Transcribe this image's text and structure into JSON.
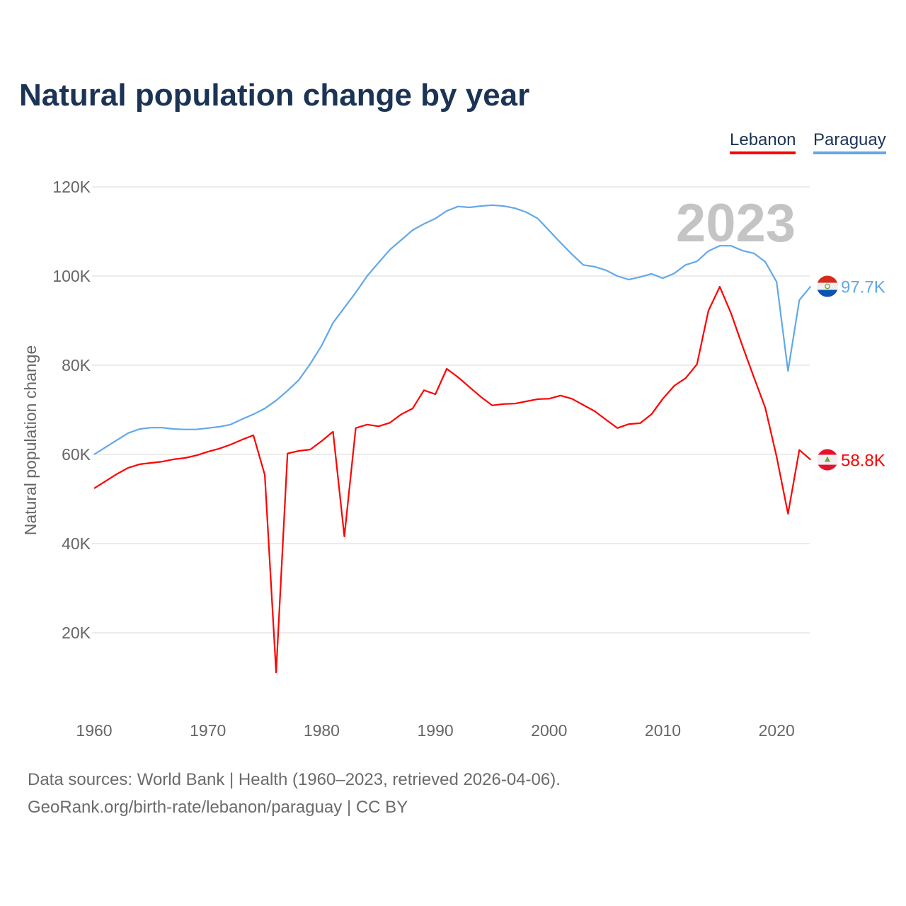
{
  "title": "Natural population change by year",
  "legend": [
    {
      "name": "Lebanon",
      "color": "#ff0000"
    },
    {
      "name": "Paraguay",
      "color": "#62a8ea"
    }
  ],
  "footer": {
    "line1": "Data sources: World Bank | Health (1960–2023, retrieved 2026-04-06).",
    "line2": "GeoRank.org/birth-rate/lebanon/paraguay | CC BY"
  },
  "chart_data": {
    "type": "line",
    "title": "Natural population change by year",
    "xlabel": "",
    "ylabel": "Natural population change",
    "year_label": "2023",
    "xlim": [
      1960,
      2023
    ],
    "ylim": [
      0,
      120000
    ],
    "grid": true,
    "legend_position": "top-right",
    "x_ticks": [
      1960,
      1970,
      1980,
      1990,
      2000,
      2010,
      2020
    ],
    "x_tick_labels": [
      "1960",
      "1970",
      "1980",
      "1990",
      "2000",
      "2010",
      "2020"
    ],
    "y_ticks": [
      20000,
      40000,
      60000,
      80000,
      100000,
      120000
    ],
    "y_tick_labels": [
      "20K",
      "40K",
      "60K",
      "80K",
      "100K",
      "120K"
    ],
    "x_start": 1960,
    "series": [
      {
        "name": "Lebanon",
        "color": "#ff0000",
        "end_label": "58.8K",
        "flag": "lebanon-flag",
        "values": [
          52.4,
          54,
          55.6,
          57,
          57.8,
          58.1,
          58.4,
          58.9,
          59.2,
          59.8,
          60.6,
          61.3,
          62.2,
          63.3,
          64.3,
          55.4,
          11.1,
          60.2,
          60.8,
          61.1,
          63,
          65.1,
          41.6,
          65.9,
          66.7,
          66.3,
          67.1,
          69,
          70.3,
          74.4,
          73.5,
          79.2,
          77.3,
          75.1,
          72.9,
          71,
          71.3,
          71.4,
          71.9,
          72.4,
          72.5,
          73.2,
          72.5,
          71.1,
          69.7,
          67.8,
          65.9,
          66.8,
          67,
          69,
          72.5,
          75.4,
          77.1,
          80.2,
          92.2,
          97.6,
          91.6,
          84.3,
          77.3,
          70.5,
          59.5,
          46.7,
          61,
          58.8
        ],
        "unit": "thousands"
      },
      {
        "name": "Paraguay",
        "color": "#62a8ea",
        "end_label": "97.7K",
        "flag": "paraguay-flag",
        "values": [
          60,
          61.6,
          63.2,
          64.8,
          65.7,
          66,
          66,
          65.7,
          65.6,
          65.6,
          65.9,
          66.2,
          66.7,
          67.9,
          69,
          70.3,
          72.1,
          74.3,
          76.7,
          80.3,
          84.4,
          89.5,
          92.9,
          96.3,
          100,
          103,
          105.9,
          108.1,
          110.3,
          111.7,
          112.9,
          114.6,
          115.6,
          115.4,
          115.7,
          115.9,
          115.7,
          115.2,
          114.3,
          112.9,
          110.2,
          107.5,
          104.9,
          102.5,
          102.1,
          101.3,
          100,
          99.2,
          99.8,
          100.5,
          99.5,
          100.6,
          102.5,
          103.3,
          105.6,
          106.8,
          106.8,
          105.7,
          105.1,
          103.2,
          98.7,
          78.7,
          94.6,
          97.7
        ],
        "unit": "thousands"
      }
    ]
  }
}
